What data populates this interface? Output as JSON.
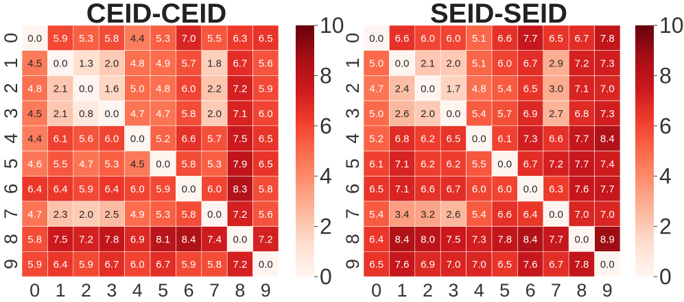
{
  "chart_data": [
    {
      "type": "heatmap",
      "title": "CEID-CEID",
      "x_tick_labels": [
        "0",
        "1",
        "2",
        "3",
        "4",
        "5",
        "6",
        "7",
        "8",
        "9"
      ],
      "y_tick_labels": [
        "0",
        "1",
        "2",
        "3",
        "4",
        "5",
        "6",
        "7",
        "8",
        "9"
      ],
      "colormap": "Reds",
      "vmin": 0,
      "vmax": 10,
      "colorbar_ticks": [
        "0",
        "2",
        "4",
        "6",
        "8",
        "10"
      ],
      "values": [
        [
          0.0,
          5.9,
          5.3,
          5.8,
          4.4,
          5.3,
          7.0,
          5.5,
          6.3,
          6.5
        ],
        [
          4.5,
          0.0,
          1.3,
          2.0,
          4.8,
          4.9,
          5.7,
          1.8,
          6.7,
          5.6
        ],
        [
          4.8,
          2.1,
          0.0,
          1.6,
          5.0,
          4.8,
          6.0,
          2.2,
          7.2,
          5.9
        ],
        [
          4.5,
          2.1,
          0.8,
          0.0,
          4.7,
          4.7,
          5.8,
          2.0,
          7.1,
          6.0
        ],
        [
          4.4,
          6.1,
          5.6,
          6.0,
          0.0,
          5.2,
          6.6,
          5.7,
          7.5,
          6.5
        ],
        [
          4.6,
          5.5,
          4.7,
          5.3,
          4.5,
          0.0,
          5.8,
          5.3,
          7.9,
          6.5
        ],
        [
          6.4,
          6.4,
          5.9,
          6.4,
          6.0,
          5.9,
          0.0,
          6.0,
          8.3,
          5.8
        ],
        [
          4.7,
          2.3,
          2.0,
          2.5,
          4.9,
          5.3,
          5.8,
          0.0,
          7.2,
          5.6
        ],
        [
          5.8,
          7.5,
          7.2,
          7.8,
          6.9,
          8.1,
          8.4,
          7.4,
          0.0,
          7.2
        ],
        [
          5.9,
          6.4,
          5.9,
          6.7,
          6.0,
          6.7,
          5.9,
          5.8,
          7.2,
          0.0
        ]
      ]
    },
    {
      "type": "heatmap",
      "title": "SEID-SEID",
      "x_tick_labels": [
        "0",
        "1",
        "2",
        "3",
        "4",
        "5",
        "6",
        "7",
        "8",
        "9"
      ],
      "y_tick_labels": [
        "0",
        "1",
        "2",
        "3",
        "4",
        "5",
        "6",
        "7",
        "8",
        "9"
      ],
      "colormap": "Reds",
      "vmin": 0,
      "vmax": 10,
      "colorbar_ticks": [
        "0",
        "2",
        "4",
        "6",
        "8",
        "10"
      ],
      "values": [
        [
          0.0,
          6.6,
          6.0,
          6.0,
          5.1,
          6.6,
          7.7,
          6.5,
          6.7,
          7.8
        ],
        [
          5.0,
          0.0,
          2.1,
          2.0,
          5.1,
          6.0,
          6.7,
          2.9,
          7.2,
          7.3
        ],
        [
          4.7,
          2.4,
          0.0,
          1.7,
          4.8,
          5.4,
          6.5,
          3.0,
          7.1,
          7.0
        ],
        [
          5.0,
          2.6,
          2.0,
          0.0,
          5.4,
          5.7,
          6.9,
          2.7,
          6.8,
          7.3
        ],
        [
          5.2,
          6.8,
          6.2,
          6.5,
          0.0,
          6.1,
          7.3,
          6.6,
          7.7,
          8.4
        ],
        [
          6.1,
          7.1,
          6.2,
          6.2,
          5.5,
          0.0,
          6.7,
          7.2,
          7.7,
          7.4
        ],
        [
          6.5,
          7.1,
          6.6,
          6.7,
          6.0,
          6.0,
          0.0,
          6.3,
          7.6,
          7.7
        ],
        [
          5.4,
          3.4,
          3.2,
          2.6,
          5.4,
          6.6,
          6.4,
          0.0,
          7.0,
          7.0
        ],
        [
          6.4,
          8.4,
          8.0,
          7.5,
          7.3,
          7.8,
          8.4,
          7.7,
          0.0,
          8.9
        ],
        [
          6.5,
          7.6,
          6.9,
          7.0,
          7.0,
          6.5,
          7.6,
          6.7,
          7.8,
          0.0
        ]
      ]
    }
  ]
}
